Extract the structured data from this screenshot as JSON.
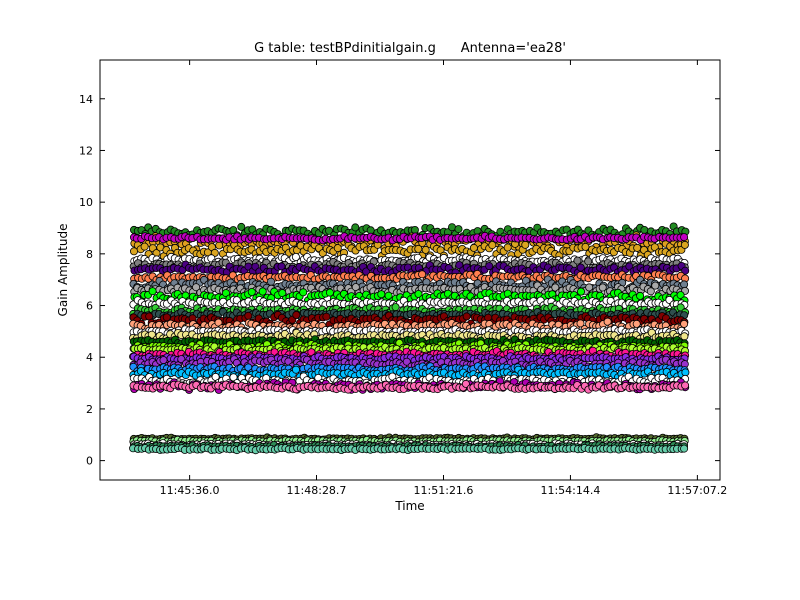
{
  "title": "G table: testBPdinitialgain.g      Antenna='ea28'",
  "chart_data": {
    "type": "scatter",
    "title": "G table: testBPdinitialgain.g      Antenna='ea28'",
    "xlabel": "Time",
    "ylabel": "Gain Amplitude",
    "xlim": [
      "11:43:34",
      "11:57:38"
    ],
    "ylim": [
      -0.75,
      15.5
    ],
    "x_range": [
      "11:44:20",
      "11:56:50"
    ],
    "x_ticks": [
      "11:45:36.0",
      "11:48:28.7",
      "11:51:21.6",
      "11:54:14.4",
      "11:57:07.2"
    ],
    "y_ticks": [
      "0",
      "2",
      "4",
      "6",
      "8",
      "10",
      "12",
      "14"
    ],
    "grid": false,
    "legend": "none",
    "marker": "circle",
    "series": [
      {
        "color": "#228b22",
        "level": 8.85,
        "spread": 0.12
      },
      {
        "color": "#e0a020",
        "level": 8.45,
        "spread": 0.16
      },
      {
        "color": "#daa520",
        "level": 8.15,
        "spread": 0.14
      },
      {
        "color": "#c000c0",
        "level": 8.6,
        "spread": 0.05
      },
      {
        "color": "#ffffff",
        "level": 7.75,
        "spread": 0.08
      },
      {
        "color": "#808080",
        "level": 7.55,
        "spread": 0.1
      },
      {
        "color": "#4b0082",
        "level": 7.4,
        "spread": 0.1
      },
      {
        "color": "#ff7f50",
        "level": 7.1,
        "spread": 0.08
      },
      {
        "color": "#708090",
        "level": 6.8,
        "spread": 0.12
      },
      {
        "color": "#a9a9a9",
        "level": 6.6,
        "spread": 0.1
      },
      {
        "color": "#00ff00",
        "level": 6.35,
        "spread": 0.12
      },
      {
        "color": "#ffffff",
        "level": 6.1,
        "spread": 0.08
      },
      {
        "color": "#32cd32",
        "level": 5.8,
        "spread": 0.08
      },
      {
        "color": "#2f4f4f",
        "level": 5.65,
        "spread": 0.06
      },
      {
        "color": "#800000",
        "level": 5.45,
        "spread": 0.12
      },
      {
        "color": "#ffa07a",
        "level": 5.2,
        "spread": 0.1
      },
      {
        "color": "#ffffff",
        "level": 5.0,
        "spread": 0.06
      },
      {
        "color": "#f0e68c",
        "level": 4.8,
        "spread": 0.08
      },
      {
        "color": "#006400",
        "level": 4.6,
        "spread": 0.06
      },
      {
        "color": "#7cfc00",
        "level": 4.4,
        "spread": 0.08
      },
      {
        "color": "#adff2f",
        "level": 4.3,
        "spread": 0.06
      },
      {
        "color": "#ff1493",
        "level": 4.1,
        "spread": 0.08
      },
      {
        "color": "#8a2be2",
        "level": 3.95,
        "spread": 0.06
      },
      {
        "color": "#9932cc",
        "level": 3.75,
        "spread": 0.1
      },
      {
        "color": "#1e90ff",
        "level": 3.55,
        "spread": 0.08
      },
      {
        "color": "#00bfff",
        "level": 3.35,
        "spread": 0.08
      },
      {
        "color": "#ffffff",
        "level": 3.1,
        "spread": 0.1
      },
      {
        "color": "#b000b0",
        "level": 2.9,
        "spread": 0.1
      },
      {
        "color": "#ff69b4",
        "level": 2.85,
        "spread": 0.06
      },
      {
        "color": "#556b2f",
        "level": 0.85,
        "spread": 0.03
      },
      {
        "color": "#90ee90",
        "level": 0.75,
        "spread": 0.03
      },
      {
        "color": "#ffffff",
        "level": 0.62,
        "spread": 0.03
      },
      {
        "color": "#2e8b57",
        "level": 0.55,
        "spread": 0.03
      },
      {
        "color": "#66cdaa",
        "level": 0.45,
        "spread": 0.03
      }
    ]
  }
}
